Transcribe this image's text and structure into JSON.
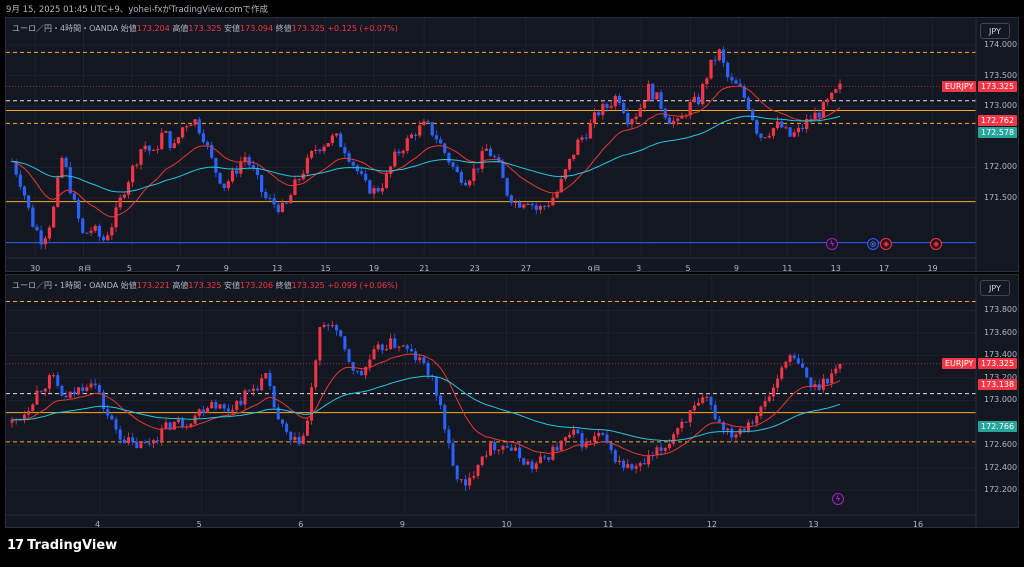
{
  "caption": "9月 15, 2025 01:45 UTC+9、yohei-fxがTradingView.comで作成",
  "brand": {
    "mark": "17",
    "name": "TradingView"
  },
  "panels": [
    {
      "id": "h4",
      "info": {
        "symbol": "ユーロ／円・4時間・OANDA",
        "open_label": "始値",
        "open": "173.204",
        "high_label": "高値",
        "high": "173.325",
        "low_label": "安値",
        "low": "173.094",
        "close_label": "終値",
        "close": "173.325",
        "change": "+0.125 (+0.07%)"
      },
      "currency_button": "JPY",
      "price_min": 170.65,
      "price_max": 174.05,
      "y_ticks": [
        "171.500",
        "172.000",
        "173.000",
        "173.500",
        "174.000"
      ],
      "y_tick_values": [
        171.5,
        172.0,
        173.0,
        173.5,
        174.0
      ],
      "x_ticks": [
        "30",
        "8月",
        "5",
        "7",
        "9",
        "13",
        "15",
        "19",
        "21",
        "23",
        "27",
        "9月",
        "3",
        "5",
        "9",
        "11",
        "13",
        "17",
        "19"
      ],
      "tags": [
        {
          "text": "EURJPY",
          "value": 173.325,
          "bg": "#f23645",
          "fg": "#ffffff"
        },
        {
          "text": "173.325",
          "value": 173.325,
          "bg": "#f23645",
          "fg": "#ffffff"
        },
        {
          "text": "172.762",
          "value": 172.762,
          "bg": "#f23645",
          "fg": "#ffffff"
        },
        {
          "text": "172.578",
          "value": 172.578,
          "bg": "#26a69a",
          "fg": "#ffffff"
        }
      ],
      "levels": [
        {
          "value": 173.88,
          "color": "#f9a825",
          "dash": true
        },
        {
          "value": 173.09,
          "color": "#e0e0e0",
          "dash": true
        },
        {
          "value": 172.93,
          "color": "#f9a825",
          "dash": false
        },
        {
          "value": 172.72,
          "color": "#f9a825",
          "dash": true
        },
        {
          "value": 171.44,
          "color": "#f9a825",
          "dash": false
        },
        {
          "value": 170.77,
          "color": "#2962ff",
          "dash": false
        }
      ],
      "events": [
        {
          "type": "bolt",
          "glyph": "ϟ"
        },
        {
          "type": "glob",
          "glyph": "◎"
        },
        {
          "type": "flag",
          "glyph": "◉"
        },
        {
          "type": "flag",
          "glyph": "◉"
        }
      ],
      "path": [
        172.1,
        171.7,
        171.1,
        170.8,
        171.2,
        172.2,
        171.5,
        170.9,
        171.0,
        170.8,
        171.1,
        171.6,
        172.0,
        172.4,
        172.2,
        172.6,
        172.3,
        172.7,
        172.8,
        172.5,
        172.0,
        171.7,
        171.9,
        172.2,
        171.9,
        171.5,
        171.4,
        171.3,
        171.7,
        172.0,
        172.3,
        172.4,
        172.5,
        172.3,
        172.0,
        171.7,
        171.6,
        171.8,
        172.2,
        172.4,
        172.6,
        172.7,
        172.5,
        172.2,
        171.9,
        171.8,
        172.0,
        172.3,
        172.1,
        171.6,
        171.4,
        171.5,
        171.3,
        171.4,
        171.6,
        172.0,
        172.4,
        172.6,
        172.9,
        173.0,
        173.2,
        172.8,
        172.9,
        173.3,
        173.1,
        172.8,
        172.7,
        173.0,
        173.1,
        173.6,
        173.9,
        173.4,
        173.3,
        173.0,
        172.5,
        172.6,
        172.7,
        172.5,
        172.6,
        172.8,
        172.9,
        173.1,
        173.3
      ],
      "ema_fast_color": "#e53935",
      "ema_slow_color": "#26c6da"
    },
    {
      "id": "h1",
      "info": {
        "symbol": "ユーロ／円・1時間・OANDA",
        "open_label": "始値",
        "open": "173.221",
        "high_label": "高値",
        "high": "173.325",
        "low_label": "安値",
        "low": "173.206",
        "close_label": "終値",
        "close": "173.325",
        "change": "+0.099 (+0.06%)"
      },
      "currency_button": "JPY",
      "price_min": 172.05,
      "price_max": 173.92,
      "y_ticks": [
        "172.200",
        "172.400",
        "172.600",
        "173.000",
        "173.200",
        "173.400",
        "173.600",
        "173.800"
      ],
      "y_tick_values": [
        172.2,
        172.4,
        172.6,
        173.0,
        173.2,
        173.4,
        173.6,
        173.8
      ],
      "x_ticks": [
        "4",
        "5",
        "6",
        "9",
        "10",
        "11",
        "12",
        "13",
        "16"
      ],
      "tags": [
        {
          "text": "EURJPY",
          "value": 173.325,
          "bg": "#f23645",
          "fg": "#ffffff"
        },
        {
          "text": "173.325",
          "value": 173.325,
          "bg": "#f23645",
          "fg": "#ffffff"
        },
        {
          "text": "173.138",
          "value": 173.138,
          "bg": "#f23645",
          "fg": "#ffffff"
        },
        {
          "text": "172.766",
          "value": 172.766,
          "bg": "#26a69a",
          "fg": "#ffffff"
        }
      ],
      "levels": [
        {
          "value": 173.88,
          "color": "#f9a825",
          "dash": true
        },
        {
          "value": 173.06,
          "color": "#e0e0e0",
          "dash": true
        },
        {
          "value": 172.89,
          "color": "#f9a825",
          "dash": false
        },
        {
          "value": 172.63,
          "color": "#f9a825",
          "dash": true
        }
      ],
      "events": [
        {
          "type": "bolt",
          "glyph": "ϟ"
        }
      ],
      "path": [
        172.8,
        172.9,
        173.1,
        173.2,
        173.0,
        173.1,
        173.2,
        172.9,
        172.7,
        172.6,
        172.6,
        172.7,
        172.8,
        172.8,
        172.9,
        173.0,
        172.9,
        173.0,
        173.1,
        173.2,
        172.8,
        172.6,
        172.7,
        173.6,
        173.7,
        173.4,
        173.2,
        173.4,
        173.5,
        173.5,
        173.4,
        173.3,
        173.0,
        172.4,
        172.2,
        172.5,
        172.6,
        172.6,
        172.5,
        172.4,
        172.5,
        172.6,
        172.7,
        172.6,
        172.7,
        172.5,
        172.4,
        172.4,
        172.5,
        172.6,
        172.8,
        172.9,
        173.0,
        172.8,
        172.7,
        172.8,
        172.9,
        173.1,
        173.4,
        173.3,
        173.1,
        173.2,
        173.3
      ],
      "ema_fast_color": "#e53935",
      "ema_slow_color": "#26c6da"
    }
  ]
}
